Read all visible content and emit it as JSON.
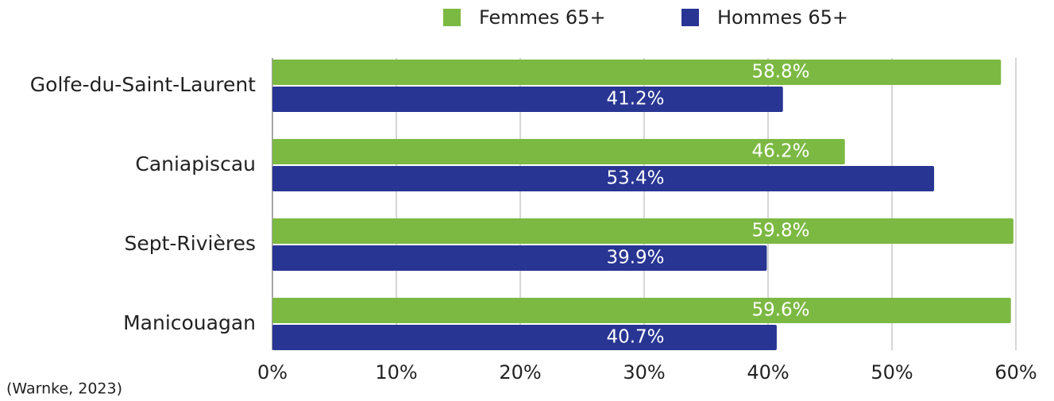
{
  "chart_data": {
    "type": "bar",
    "orientation": "horizontal",
    "categories": [
      "Golfe-du-Saint-Laurent",
      "Caniapiscau",
      "Sept-Rivières",
      "Manicouagan"
    ],
    "series": [
      {
        "name": "Femmes 65+",
        "color": "#7cb943",
        "values": [
          58.8,
          46.2,
          59.8,
          59.6
        ],
        "value_labels": [
          "58.8%",
          "46.2%",
          "59.8%",
          "59.6%"
        ]
      },
      {
        "name": "Hommes 65+",
        "color": "#283593",
        "values": [
          41.2,
          53.4,
          39.9,
          40.7
        ],
        "value_labels": [
          "41.2%",
          "53.4%",
          "39.9%",
          "40.7%"
        ]
      }
    ],
    "xlim": [
      0,
      60
    ],
    "xticks": [
      {
        "value": 0,
        "label": "0%"
      },
      {
        "value": 10,
        "label": "10%"
      },
      {
        "value": 20,
        "label": "20%"
      },
      {
        "value": 30,
        "label": "30%"
      },
      {
        "value": 40,
        "label": "40%"
      },
      {
        "value": 50,
        "label": "50%"
      },
      {
        "value": 60,
        "label": "60%"
      }
    ],
    "grid": true,
    "legend": "top",
    "note": "(Warnke, 2023)"
  }
}
